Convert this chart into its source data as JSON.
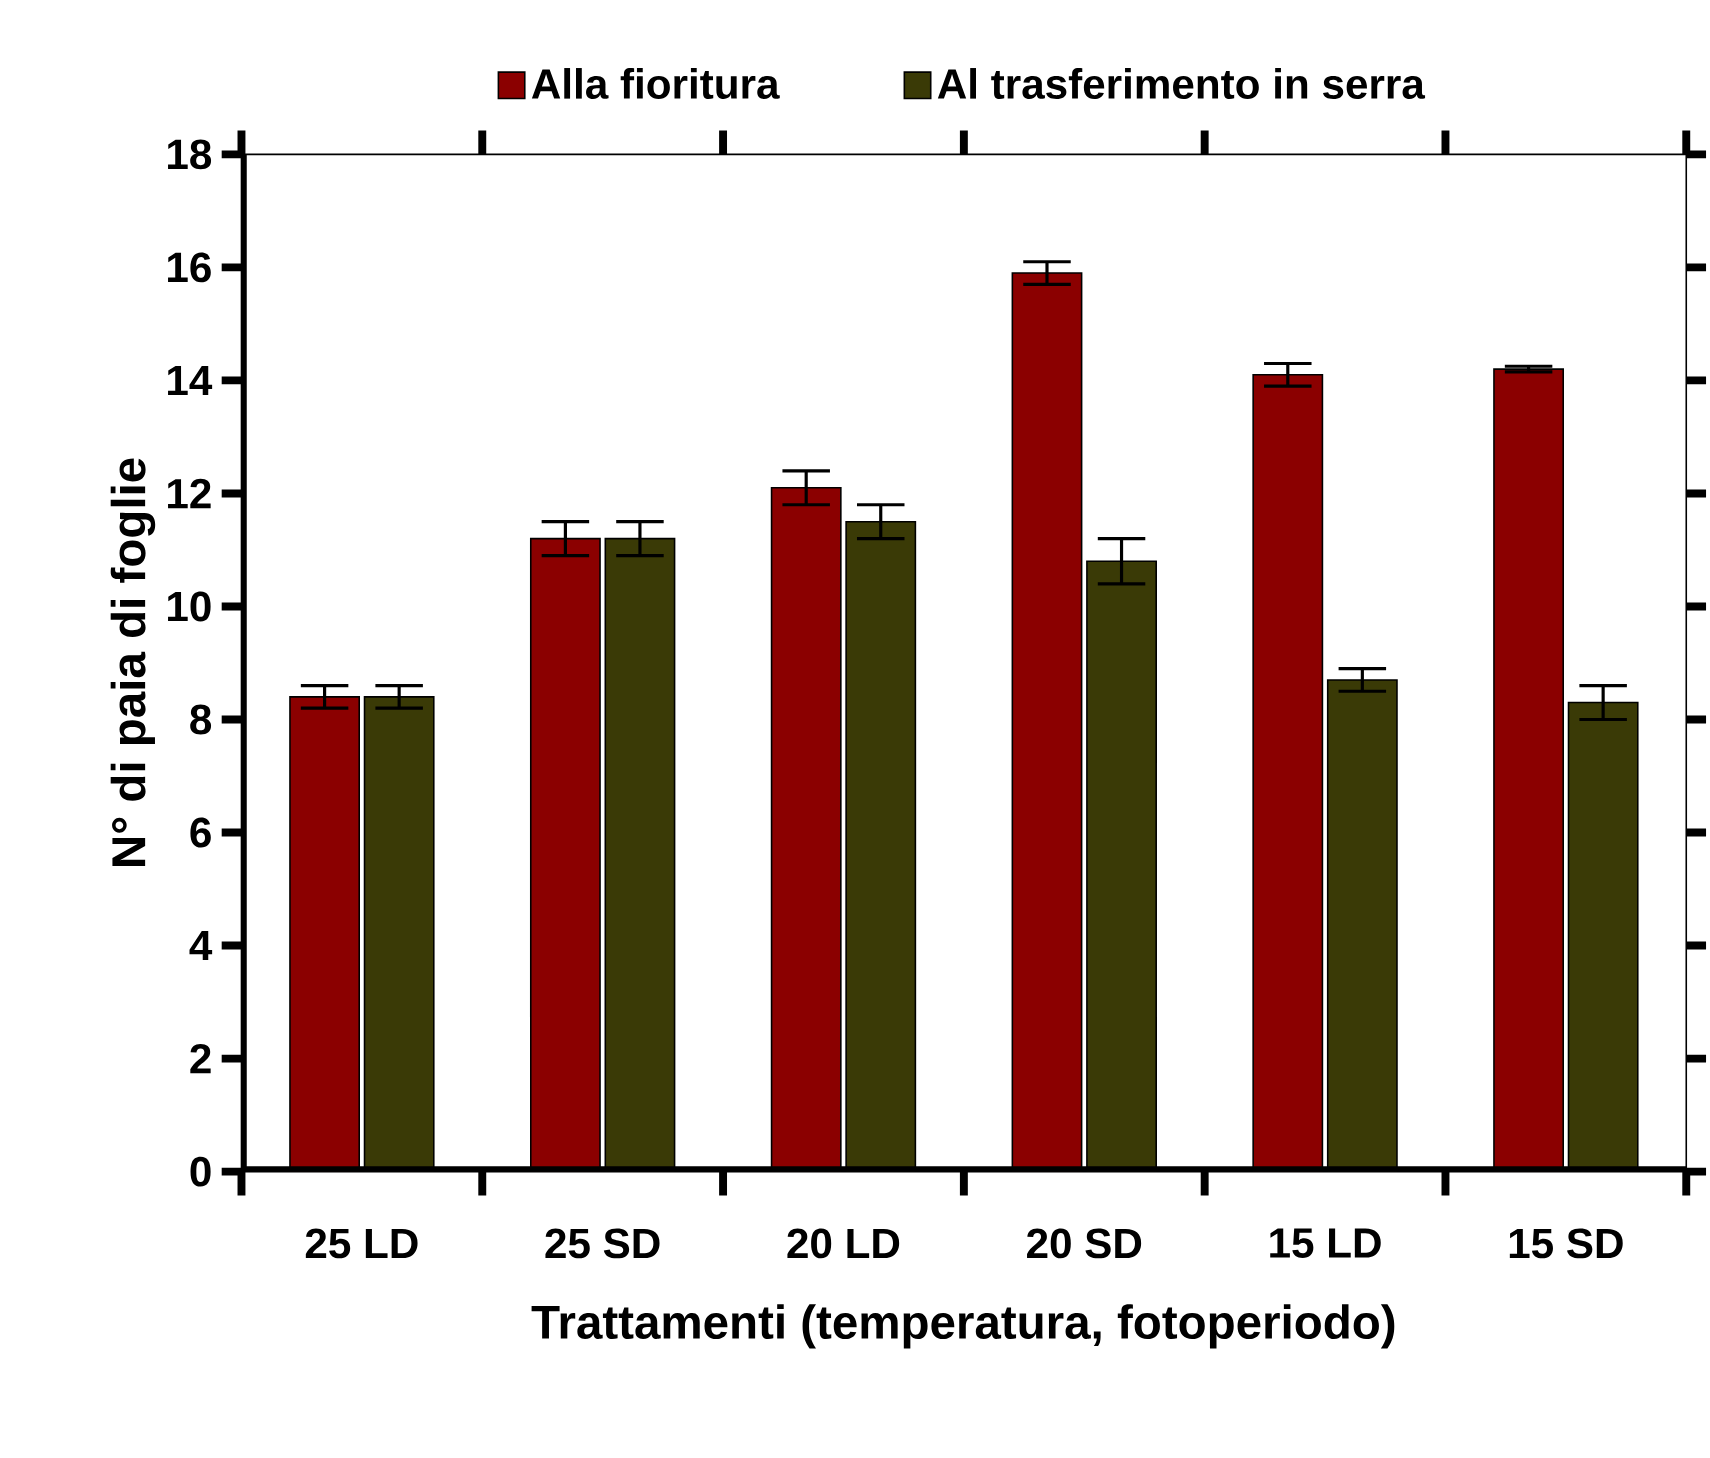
{
  "chart_data": {
    "type": "bar",
    "xlabel": "Trattamenti (temperatura, fotoperiodo)",
    "ylabel": "N° di paia di foglie",
    "categories": [
      "25 LD",
      "25 SD",
      "20 LD",
      "20 SD",
      "15 LD",
      "15 SD"
    ],
    "series": [
      {
        "name": "Alla fioritura",
        "color": "#8b0000",
        "values": [
          8.4,
          11.2,
          12.1,
          15.9,
          14.1,
          14.2
        ],
        "errors": [
          0.2,
          0.3,
          0.3,
          0.2,
          0.2,
          0.05
        ]
      },
      {
        "name": "Al trasferimento in serra",
        "color": "#3a3a06",
        "values": [
          8.4,
          11.2,
          11.5,
          10.8,
          8.7,
          8.3
        ],
        "errors": [
          0.2,
          0.3,
          0.3,
          0.4,
          0.2,
          0.3
        ]
      }
    ],
    "ylim": [
      0,
      18
    ],
    "yticks": [
      0,
      2,
      4,
      6,
      8,
      10,
      12,
      14,
      16,
      18
    ],
    "legend": "top",
    "grid": false
  }
}
